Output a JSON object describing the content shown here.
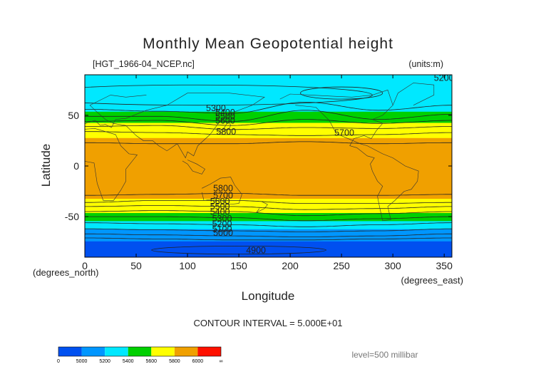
{
  "chart_data": {
    "type": "heatmap",
    "title": "Monthly Mean Geopotential height",
    "file_label": "[HGT_1966-04_NCEP.nc]",
    "units_label": "(units:m)",
    "xlabel": "Longitude",
    "ylabel": "Latitude",
    "x_unit_label": "(degrees_east)",
    "y_unit_label": "(degrees_north)",
    "xlim": [
      0,
      357.5
    ],
    "ylim": [
      -90,
      90
    ],
    "x_ticks": [
      "0",
      "50",
      "100",
      "150",
      "200",
      "250",
      "300",
      "350"
    ],
    "x_tick_values": [
      0,
      50,
      100,
      150,
      200,
      250,
      300,
      350
    ],
    "y_ticks": [
      "50",
      "0",
      "-50"
    ],
    "y_tick_values": [
      50,
      0,
      -50
    ],
    "contour_interval_text": "CONTOUR INTERVAL = 5.000E+01",
    "level_text": "level=500 millibar",
    "contour_labels": [
      "5300",
      "5400",
      "5500",
      "5600",
      "5800",
      "5700",
      "5200",
      "5800",
      "5700",
      "5600",
      "5500",
      "5400",
      "5300",
      "5200",
      "5100",
      "5000",
      "4900"
    ],
    "color_levels": [
      0,
      5000,
      5200,
      5400,
      5600,
      5800,
      6000,
      "∞"
    ],
    "color_levels_text": [
      "0",
      "5000",
      "5200",
      "5400",
      "5600",
      "5800",
      "6000",
      "∞"
    ],
    "colors": [
      "#0050f0",
      "#0096ff",
      "#00e8ff",
      "#00d000",
      "#ffff00",
      "#f0a000",
      "#ff1000"
    ],
    "band_stops": [
      {
        "lat": -90,
        "value": 4880
      },
      {
        "lat": -78,
        "value": 4950
      },
      {
        "lat": -68,
        "value": 5080
      },
      {
        "lat": -60,
        "value": 5250
      },
      {
        "lat": -52,
        "value": 5450
      },
      {
        "lat": -44,
        "value": 5650
      },
      {
        "lat": -36,
        "value": 5770
      },
      {
        "lat": -28,
        "value": 5830
      },
      {
        "lat": 0,
        "value": 5870
      },
      {
        "lat": 24,
        "value": 5830
      },
      {
        "lat": 30,
        "value": 5780
      },
      {
        "lat": 38,
        "value": 5680
      },
      {
        "lat": 46,
        "value": 5550
      },
      {
        "lat": 54,
        "value": 5400
      },
      {
        "lat": 64,
        "value": 5280
      },
      {
        "lat": 76,
        "value": 5220
      },
      {
        "lat": 90,
        "value": 5200
      }
    ],
    "contour_lines": [
      {
        "value": 5800,
        "lats": [
          -29,
          -28,
          -27,
          -29,
          -29,
          -28
        ]
      },
      {
        "value": 5700,
        "lats": [
          -36,
          -34,
          -34,
          -37,
          -37,
          -36
        ]
      },
      {
        "value": 5600,
        "lats": [
          -40,
          -39,
          -40,
          -43,
          -42,
          -40
        ]
      },
      {
        "value": 5500,
        "lats": [
          -45,
          -44,
          -45,
          -49,
          -47,
          -45
        ]
      },
      {
        "value": 5400,
        "lats": [
          -50,
          -50,
          -51,
          -54,
          -52,
          -50
        ]
      },
      {
        "value": 5300,
        "lats": [
          -56,
          -57,
          -58,
          -60,
          -58,
          -56
        ]
      },
      {
        "value": 5200,
        "lats": [
          -62,
          -63,
          -64,
          -65,
          -64,
          -62
        ]
      },
      {
        "value": 5100,
        "lats": [
          -67,
          -68,
          -69,
          -70,
          -69,
          -67
        ]
      },
      {
        "value": 5000,
        "lats": [
          -71,
          -72,
          -73,
          -73,
          -72,
          -71
        ]
      },
      {
        "value": 5800,
        "lats": [
          23,
          22,
          22,
          24,
          22,
          23
        ]
      },
      {
        "value": 5700,
        "lats": [
          34,
          33,
          31,
          30,
          31,
          33
        ]
      },
      {
        "value": 5600,
        "lats": [
          39,
          40,
          36,
          38,
          37,
          39
        ]
      },
      {
        "value": 5500,
        "lats": [
          44,
          45,
          40,
          46,
          42,
          45
        ]
      },
      {
        "value": 5400,
        "lats": [
          49,
          49,
          44,
          55,
          46,
          51
        ]
      },
      {
        "value": 5300,
        "lats": [
          56,
          54,
          52,
          63,
          55,
          60
        ]
      }
    ]
  }
}
